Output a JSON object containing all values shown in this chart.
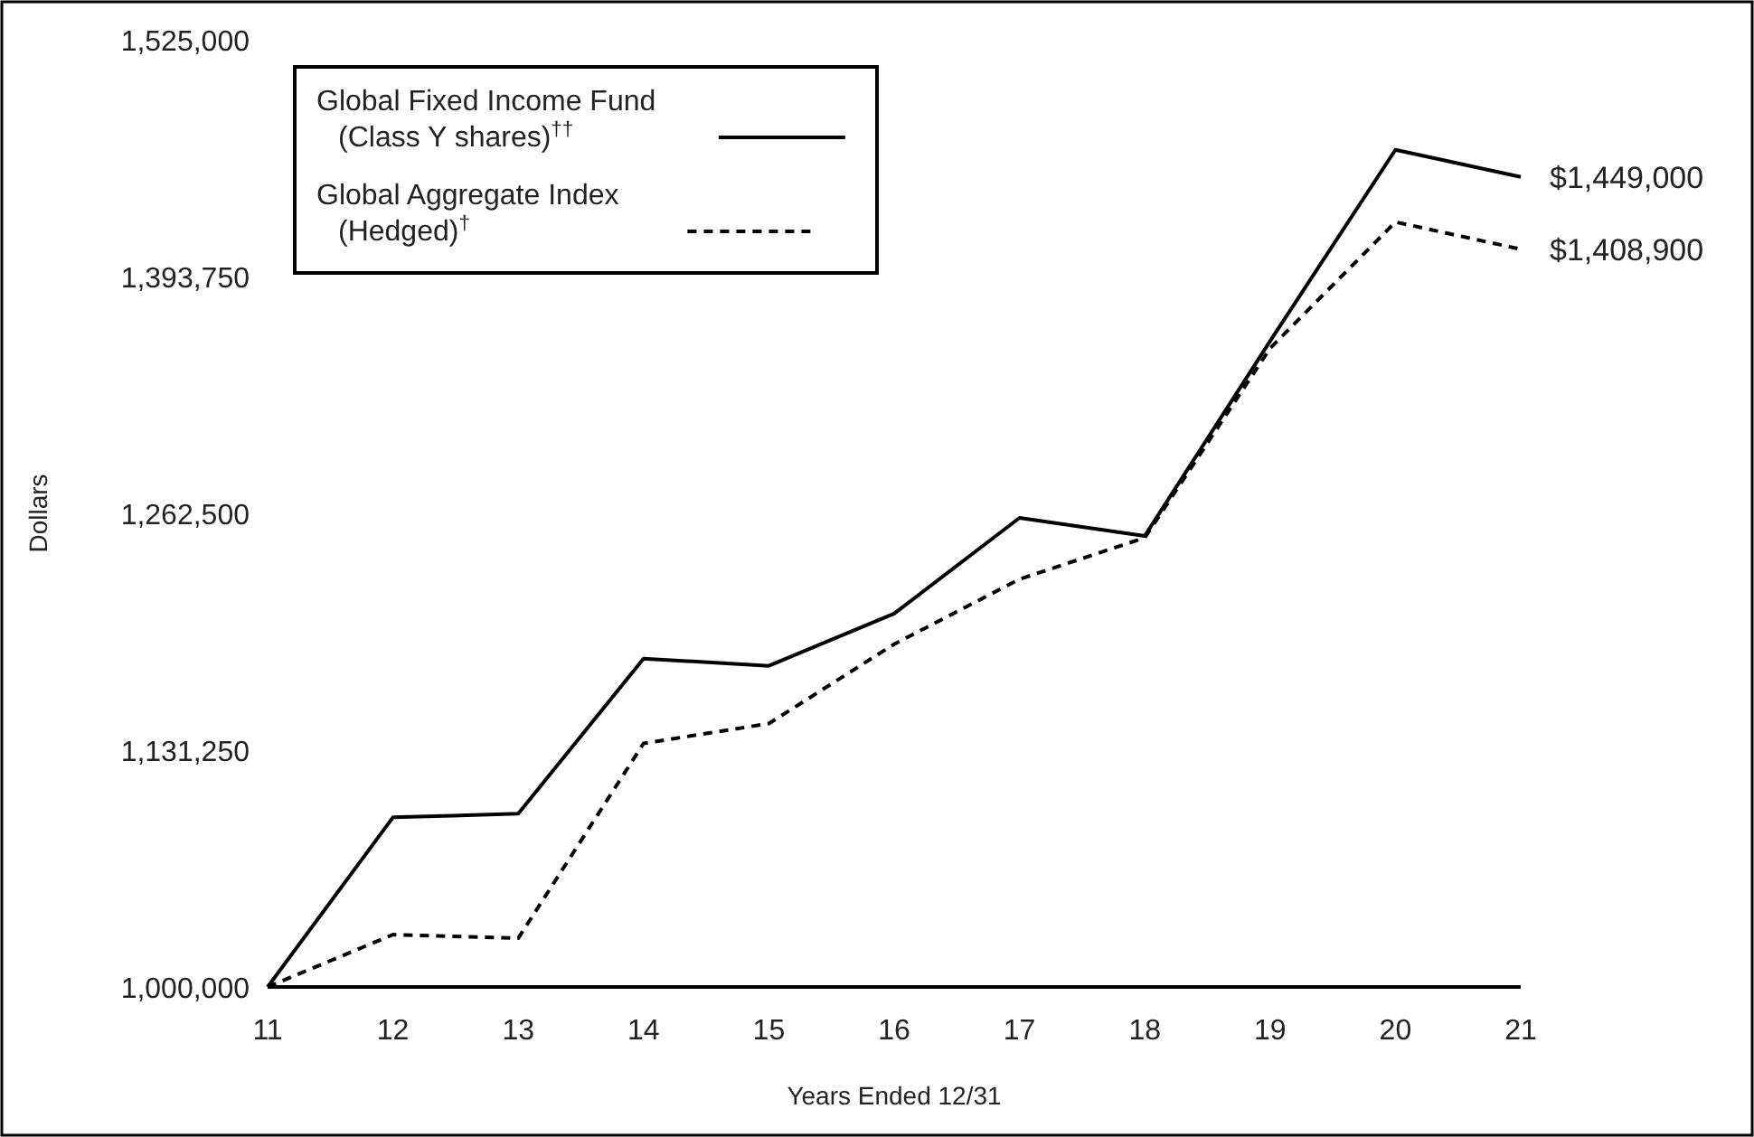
{
  "chart_data": {
    "type": "line",
    "xlabel": "Years Ended 12/31",
    "ylabel": "Dollars",
    "x": [
      11,
      12,
      13,
      14,
      15,
      16,
      17,
      18,
      19,
      20,
      21
    ],
    "xlim": [
      11,
      21
    ],
    "xticks": [
      11,
      12,
      13,
      14,
      15,
      16,
      17,
      18,
      19,
      20,
      21
    ],
    "ylim": [
      1000000,
      1525000
    ],
    "yticks": [
      {
        "value": 1000000,
        "label": "1,000,000"
      },
      {
        "value": 1131250,
        "label": "1,131,250"
      },
      {
        "value": 1262500,
        "label": "1,262,500"
      },
      {
        "value": 1393750,
        "label": "1,393,750"
      },
      {
        "value": 1525000,
        "label": "1,525,000"
      }
    ],
    "grid": false,
    "legend": "top left",
    "marker": "none",
    "series": [
      {
        "name": "Global Fixed Income Fund (Class Y shares)$^{††}$",
        "color": "#000000",
        "line_style": "solid",
        "values": [
          1000000,
          1094000,
          1096000,
          1182000,
          1178000,
          1207000,
          1260000,
          1250000,
          1358000,
          1464000,
          1449000
        ],
        "value_labels": [
          null,
          null,
          null,
          null,
          null,
          null,
          null,
          null,
          null,
          null,
          "$1,449,000"
        ]
      },
      {
        "name": "Global Aggregate Index (Hedged)$^{†}$",
        "color": "#000000",
        "line_style": "dashed",
        "values": [
          1000000,
          1029000,
          1027000,
          1135000,
          1146000,
          1190000,
          1226000,
          1249000,
          1354000,
          1424000,
          1408900
        ],
        "value_labels": [
          null,
          null,
          null,
          null,
          null,
          null,
          null,
          null,
          null,
          null,
          "$1,408,900"
        ]
      }
    ]
  }
}
